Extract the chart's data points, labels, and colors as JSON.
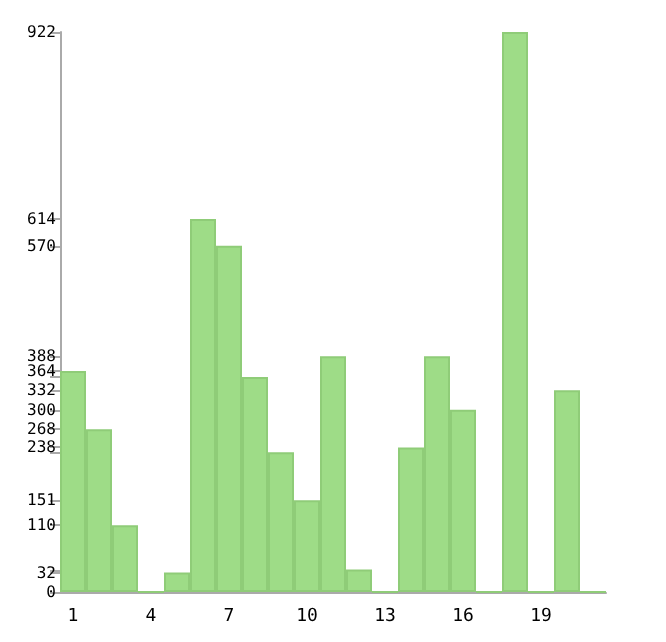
{
  "chart_data": {
    "type": "bar",
    "categories": [
      "1",
      null,
      null,
      "4",
      null,
      null,
      "7",
      null,
      null,
      "10",
      null,
      null,
      "13",
      null,
      null,
      "16",
      null,
      null,
      "19",
      null,
      null
    ],
    "values": [
      364,
      268,
      110,
      0,
      32,
      614,
      570,
      354,
      230,
      151,
      388,
      37,
      0,
      238,
      388,
      300,
      0,
      922,
      0,
      332,
      0
    ],
    "color": "#9edc87",
    "ylim": [
      0,
      922
    ],
    "yticks": [
      0,
      32,
      {
        "value": 37,
        "label": null
      },
      110,
      151,
      {
        "value": 230,
        "label": null
      },
      238,
      268,
      300,
      332,
      {
        "value": 354,
        "label": null
      },
      364,
      388,
      570,
      614,
      922
    ],
    "grid": false
  }
}
